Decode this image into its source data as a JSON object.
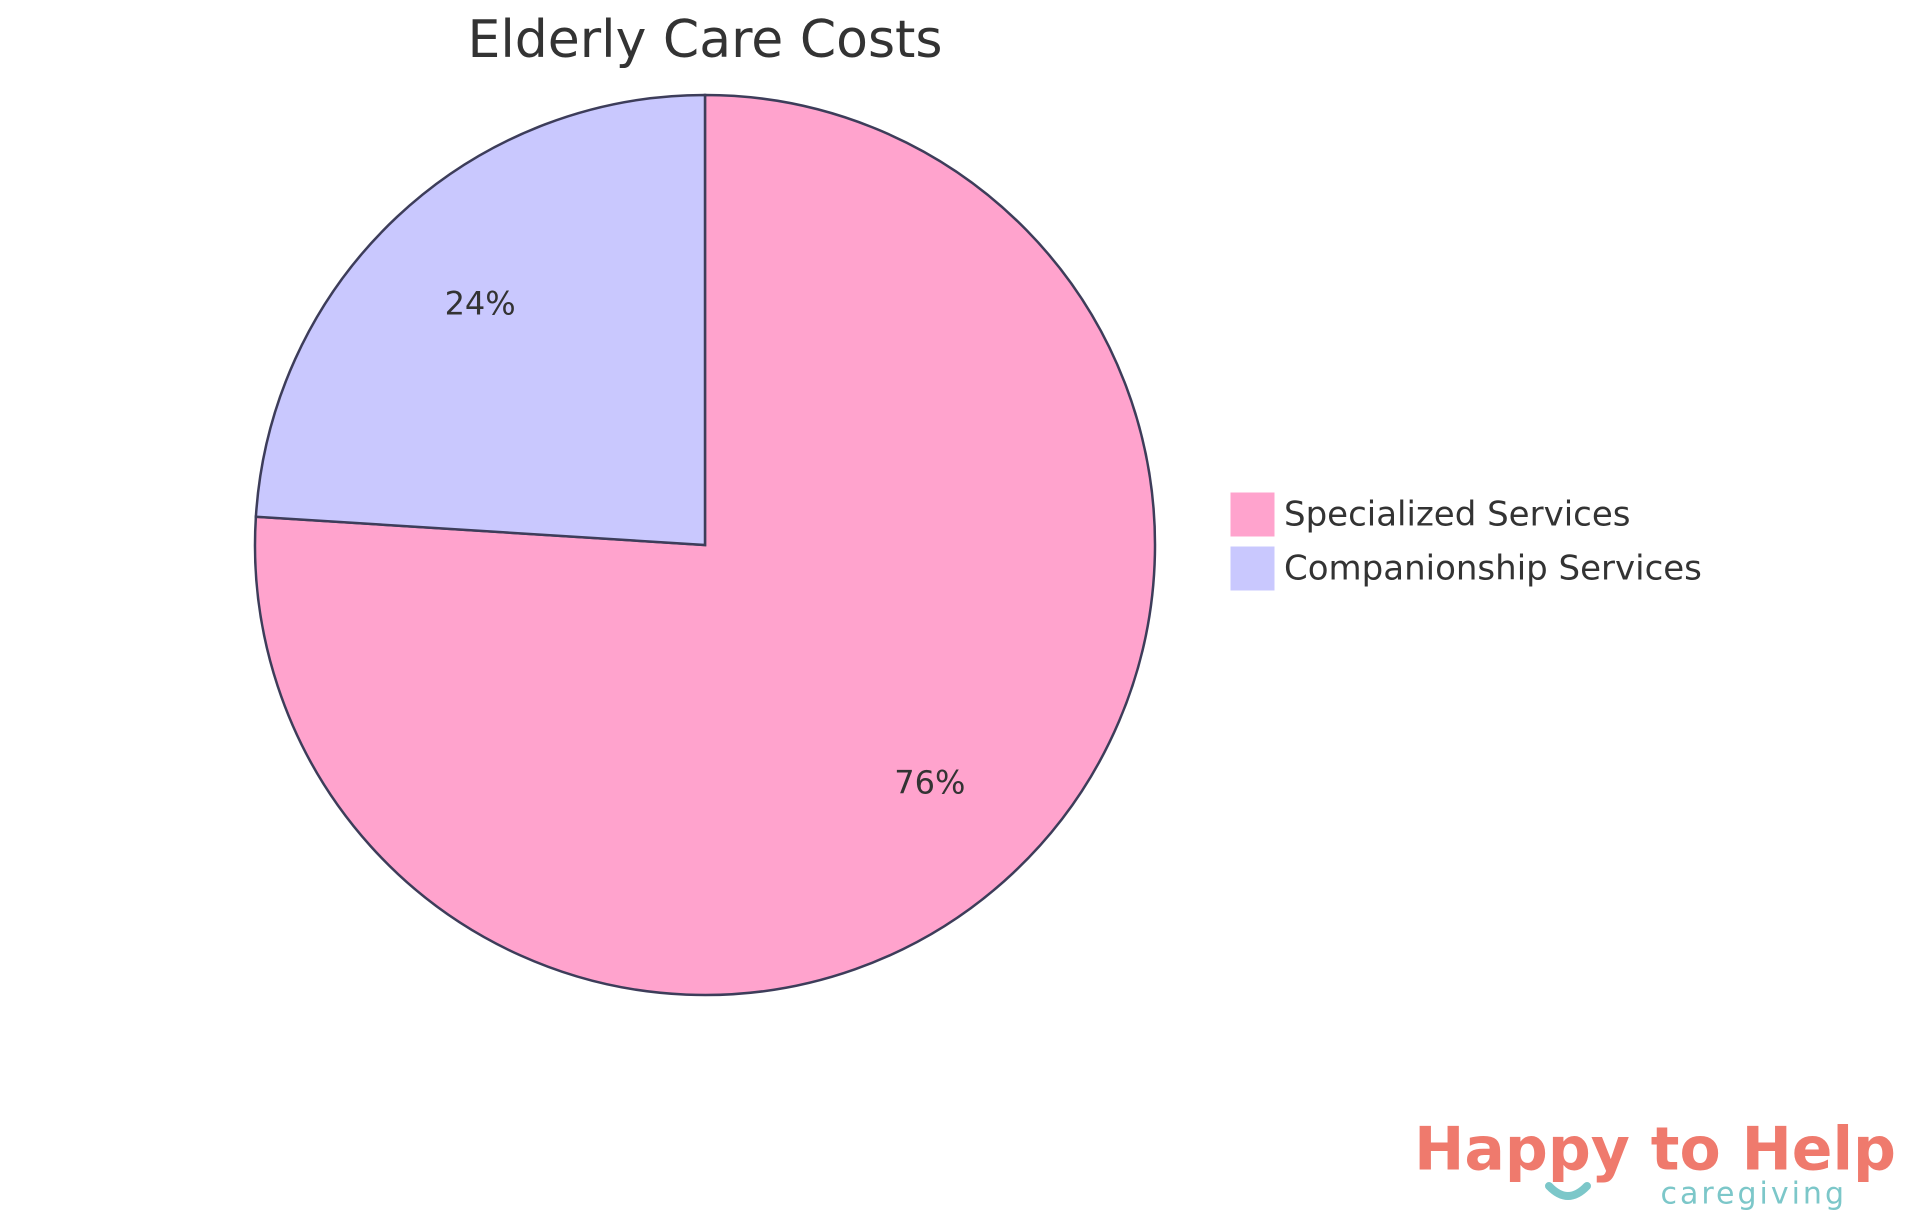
{
  "chart_data": {
    "type": "pie",
    "title": "Elderly Care Costs",
    "categories": [
      "Specialized Services",
      "Companionship Services"
    ],
    "values": [
      76,
      24
    ],
    "value_labels": [
      "76%",
      "24%"
    ],
    "colors": [
      "#FFA3CD",
      "#C9C8FE"
    ],
    "legend": "right"
  },
  "logo": {
    "name": "Happy to Help",
    "tagline": "caregiving"
  }
}
